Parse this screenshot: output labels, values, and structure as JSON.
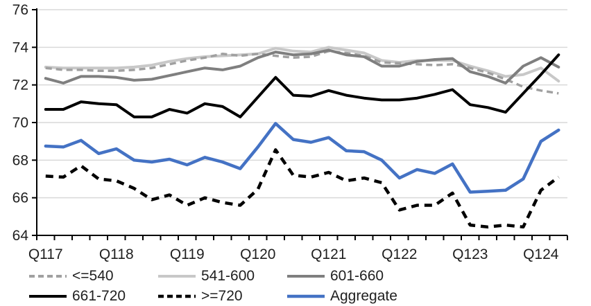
{
  "chart_data": {
    "type": "line",
    "title": "",
    "x_axis": {
      "tick_labels": [
        "Q117",
        "Q118",
        "Q119",
        "Q120",
        "Q121",
        "Q122",
        "Q123",
        "Q124"
      ],
      "quarters_total": 30,
      "label_interval": 4
    },
    "y_axis": {
      "min": 64,
      "max": 76,
      "step": 2,
      "tick_labels": [
        "64",
        "66",
        "68",
        "70",
        "72",
        "74",
        "76"
      ]
    },
    "grid": "horizontal",
    "legend_position": "bottom",
    "colors": {
      "gridline": "#d9d9d9",
      "axis": "#000000",
      "text": "#1f1f1f"
    },
    "series": [
      {
        "name": "<=540",
        "color": "#a0a0a0",
        "dash": "9 6",
        "width": 3.5,
        "values": [
          72.9,
          72.8,
          72.8,
          72.75,
          72.75,
          72.8,
          72.9,
          73.1,
          73.3,
          73.45,
          73.65,
          73.55,
          73.65,
          73.55,
          73.45,
          73.5,
          73.8,
          73.7,
          73.55,
          73.2,
          73.15,
          73.1,
          73.05,
          73.1,
          72.9,
          72.65,
          72.3,
          71.9,
          71.7,
          71.55
        ]
      },
      {
        "name": "541-600",
        "color": "#c8c8c8",
        "dash": "none",
        "width": 4,
        "values": [
          72.95,
          72.9,
          72.9,
          72.9,
          72.9,
          72.95,
          73.05,
          73.25,
          73.4,
          73.5,
          73.55,
          73.6,
          73.65,
          73.95,
          73.8,
          73.75,
          74.0,
          73.85,
          73.7,
          73.3,
          73.2,
          73.3,
          73.3,
          73.3,
          73.0,
          72.75,
          72.45,
          72.55,
          72.9,
          72.2
        ]
      },
      {
        "name": "601-660",
        "color": "#7f7f7f",
        "dash": "none",
        "width": 4,
        "values": [
          72.35,
          72.1,
          72.45,
          72.45,
          72.4,
          72.25,
          72.3,
          72.5,
          72.7,
          72.9,
          72.8,
          73.0,
          73.45,
          73.75,
          73.6,
          73.65,
          73.85,
          73.6,
          73.5,
          73.0,
          73.0,
          73.25,
          73.35,
          73.4,
          72.7,
          72.45,
          72.1,
          73.0,
          73.45,
          72.95
        ]
      },
      {
        "name": "661-720",
        "color": "#000000",
        "dash": "none",
        "width": 4,
        "values": [
          70.7,
          70.7,
          71.1,
          71.0,
          70.95,
          70.3,
          70.3,
          70.7,
          70.5,
          71.0,
          70.85,
          70.3,
          71.35,
          72.4,
          71.45,
          71.4,
          71.7,
          71.45,
          71.3,
          71.2,
          71.2,
          71.3,
          71.5,
          71.75,
          70.95,
          70.8,
          70.55,
          71.55,
          72.55,
          73.6
        ]
      },
      {
        "name": ">=720",
        "color": "#000000",
        "dash": "11 8",
        "width": 4.5,
        "values": [
          67.15,
          67.1,
          67.7,
          67.0,
          66.9,
          66.5,
          65.9,
          66.15,
          65.6,
          66.0,
          65.75,
          65.6,
          66.45,
          68.55,
          67.2,
          67.1,
          67.35,
          66.9,
          67.05,
          66.8,
          65.35,
          65.6,
          65.6,
          66.25,
          64.55,
          64.45,
          64.55,
          64.45,
          66.4,
          67.1
        ]
      },
      {
        "name": "Aggregate",
        "color": "#4472c4",
        "dash": "none",
        "width": 4.5,
        "values": [
          68.75,
          68.7,
          69.05,
          68.35,
          68.6,
          68.0,
          67.9,
          68.05,
          67.75,
          68.15,
          67.9,
          67.55,
          68.7,
          69.95,
          69.1,
          68.95,
          69.2,
          68.5,
          68.45,
          68.0,
          67.05,
          67.5,
          67.3,
          67.8,
          66.3,
          66.35,
          66.4,
          67.0,
          69.0,
          69.6
        ]
      }
    ]
  }
}
